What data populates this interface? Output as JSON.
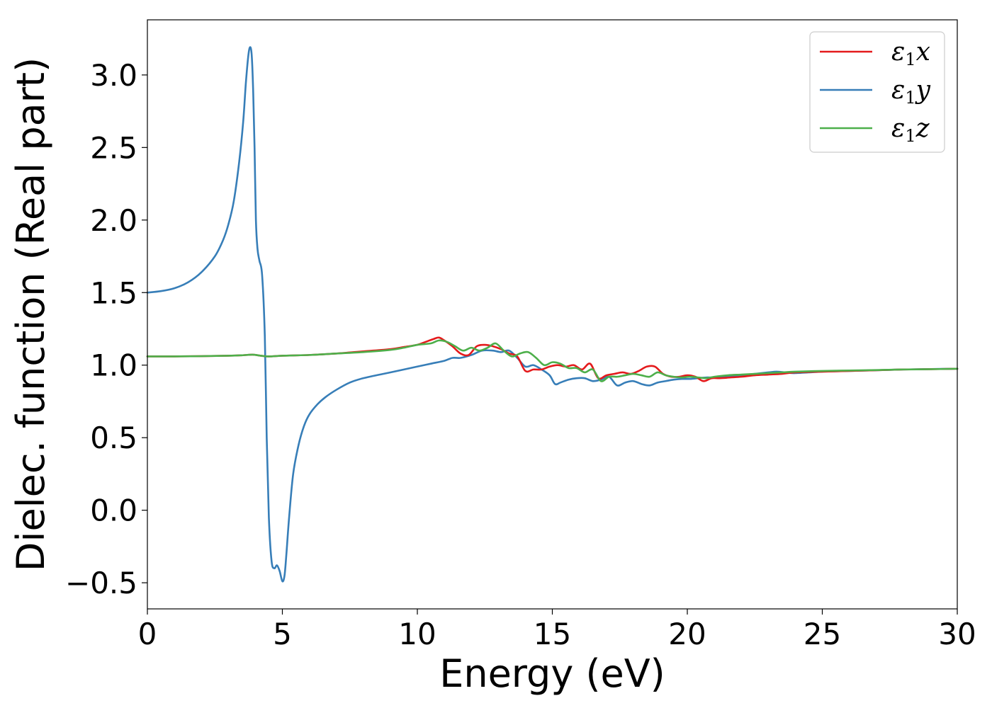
{
  "chart_data": {
    "type": "line",
    "xlabel": "Energy (eV)",
    "ylabel": "Dielec. function (Real part)",
    "xlim": [
      0,
      30
    ],
    "ylim": [
      -0.68,
      3.38
    ],
    "xticks": [
      0,
      5,
      10,
      15,
      20,
      25,
      30
    ],
    "xtick_labels": [
      "0",
      "5",
      "10",
      "15",
      "20",
      "25",
      "30"
    ],
    "yticks": [
      -0.5,
      0.0,
      0.5,
      1.0,
      1.5,
      2.0,
      2.5,
      3.0
    ],
    "ytick_labels": [
      "−0.5",
      "0.0",
      "0.5",
      "1.0",
      "1.5",
      "2.0",
      "2.5",
      "3.0"
    ],
    "grid": false,
    "legend_position": "top-right",
    "series": [
      {
        "name": "ε₁x",
        "legend_base": "ε",
        "legend_sub": "1",
        "legend_var": "x",
        "color": "#e41a1c",
        "x": [
          0,
          1,
          2,
          3,
          3.5,
          3.9,
          4.2,
          4.5,
          5,
          6,
          7,
          8,
          9,
          9.5,
          10,
          10.3,
          10.6,
          10.8,
          11,
          11.3,
          11.6,
          11.9,
          12.2,
          12.5,
          12.8,
          13.1,
          13.4,
          13.7,
          14.0,
          14.3,
          14.6,
          14.9,
          15.2,
          15.5,
          15.8,
          16.1,
          16.4,
          16.7,
          17.0,
          17.3,
          17.6,
          17.9,
          18.2,
          18.5,
          18.8,
          19.1,
          19.4,
          19.7,
          20.0,
          20.3,
          20.6,
          20.9,
          21.2,
          21.6,
          22.0,
          22.5,
          23.0,
          23.5,
          24.0,
          25.0,
          26.0,
          27.0,
          28.0,
          29.0,
          30.0
        ],
        "y": [
          1.06,
          1.06,
          1.062,
          1.065,
          1.068,
          1.072,
          1.065,
          1.06,
          1.065,
          1.07,
          1.08,
          1.095,
          1.11,
          1.125,
          1.14,
          1.16,
          1.18,
          1.19,
          1.17,
          1.13,
          1.08,
          1.07,
          1.13,
          1.14,
          1.13,
          1.11,
          1.08,
          1.06,
          0.96,
          0.97,
          0.97,
          0.99,
          1.0,
          0.99,
          1.0,
          0.97,
          1.01,
          0.91,
          0.93,
          0.94,
          0.95,
          0.94,
          0.96,
          0.99,
          0.99,
          0.94,
          0.92,
          0.92,
          0.93,
          0.92,
          0.89,
          0.91,
          0.91,
          0.915,
          0.92,
          0.93,
          0.935,
          0.94,
          0.95,
          0.955,
          0.96,
          0.965,
          0.97,
          0.972,
          0.975
        ]
      },
      {
        "name": "ε₁y",
        "legend_base": "ε",
        "legend_sub": "1",
        "legend_var": "y",
        "color": "#377eb8",
        "x": [
          0,
          0.5,
          1.0,
          1.5,
          2.0,
          2.5,
          2.8,
          3.0,
          3.2,
          3.4,
          3.55,
          3.65,
          3.75,
          3.82,
          3.87,
          3.92,
          3.97,
          4.02,
          4.08,
          4.15,
          4.25,
          4.35,
          4.42,
          4.5,
          4.6,
          4.7,
          4.8,
          4.9,
          5.0,
          5.08,
          5.15,
          5.25,
          5.4,
          5.6,
          5.8,
          6.0,
          6.3,
          6.6,
          7.0,
          7.5,
          8.0,
          9.0,
          10.0,
          10.5,
          11.0,
          11.3,
          11.6,
          12.0,
          12.4,
          12.8,
          13.1,
          13.4,
          13.7,
          14.0,
          14.3,
          14.6,
          14.9,
          15.1,
          15.3,
          15.6,
          15.9,
          16.2,
          16.5,
          16.8,
          17.1,
          17.4,
          17.7,
          18.0,
          18.3,
          18.6,
          18.9,
          19.2,
          19.5,
          19.8,
          20.1,
          20.4,
          20.7,
          21.0,
          21.5,
          22.0,
          22.5,
          23.0,
          23.3,
          23.6,
          24.0,
          25.0,
          26.0,
          27.0,
          28.0,
          29.0,
          30.0
        ],
        "y": [
          1.5,
          1.51,
          1.53,
          1.57,
          1.64,
          1.75,
          1.86,
          1.97,
          2.13,
          2.4,
          2.68,
          2.95,
          3.15,
          3.19,
          3.12,
          2.88,
          2.5,
          2.0,
          1.8,
          1.72,
          1.62,
          1.2,
          0.5,
          -0.05,
          -0.35,
          -0.4,
          -0.38,
          -0.42,
          -0.49,
          -0.45,
          -0.3,
          -0.05,
          0.25,
          0.45,
          0.58,
          0.66,
          0.73,
          0.78,
          0.83,
          0.88,
          0.91,
          0.95,
          0.99,
          1.01,
          1.03,
          1.05,
          1.05,
          1.07,
          1.1,
          1.1,
          1.09,
          1.1,
          1.05,
          0.99,
          1.0,
          0.97,
          0.93,
          0.87,
          0.88,
          0.9,
          0.91,
          0.91,
          0.89,
          0.9,
          0.92,
          0.86,
          0.88,
          0.89,
          0.87,
          0.86,
          0.88,
          0.89,
          0.9,
          0.905,
          0.905,
          0.91,
          0.915,
          0.915,
          0.92,
          0.93,
          0.94,
          0.95,
          0.955,
          0.95,
          0.945,
          0.955,
          0.96,
          0.965,
          0.97,
          0.973,
          0.975
        ]
      },
      {
        "name": "ε₁z",
        "legend_base": "ε",
        "legend_sub": "1",
        "legend_var": "z",
        "color": "#4daf4a",
        "x": [
          0,
          1,
          2,
          3,
          3.5,
          3.9,
          4.2,
          4.5,
          5,
          6,
          7,
          8,
          9,
          9.5,
          10,
          10.5,
          10.8,
          11.1,
          11.4,
          11.7,
          12.0,
          12.3,
          12.6,
          12.9,
          13.2,
          13.5,
          13.8,
          14.1,
          14.4,
          14.7,
          15.0,
          15.3,
          15.6,
          15.9,
          16.2,
          16.5,
          16.8,
          17.1,
          17.4,
          17.7,
          18.0,
          18.3,
          18.6,
          18.9,
          19.2,
          19.5,
          19.8,
          20.1,
          20.4,
          20.7,
          21.0,
          21.5,
          22.0,
          22.5,
          23.0,
          23.5,
          24.0,
          25.0,
          26.0,
          27.0,
          28.0,
          29.0,
          30.0
        ],
        "y": [
          1.06,
          1.06,
          1.062,
          1.065,
          1.068,
          1.072,
          1.065,
          1.06,
          1.065,
          1.07,
          1.08,
          1.09,
          1.105,
          1.12,
          1.14,
          1.15,
          1.17,
          1.16,
          1.13,
          1.1,
          1.12,
          1.1,
          1.12,
          1.15,
          1.1,
          1.06,
          1.08,
          1.09,
          1.05,
          1.0,
          1.02,
          1.01,
          0.98,
          0.98,
          0.95,
          0.97,
          0.89,
          0.92,
          0.92,
          0.93,
          0.94,
          0.93,
          0.92,
          0.95,
          0.93,
          0.92,
          0.915,
          0.92,
          0.915,
          0.91,
          0.92,
          0.93,
          0.935,
          0.94,
          0.945,
          0.95,
          0.955,
          0.96,
          0.963,
          0.966,
          0.97,
          0.972,
          0.975
        ]
      }
    ]
  }
}
